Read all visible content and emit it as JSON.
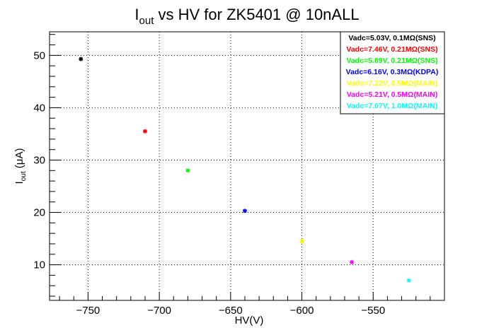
{
  "chart_data": {
    "type": "scatter",
    "title": {
      "main": "I",
      "sub": "out",
      "rest": " vs HV for ZK5401 @ 10nALL"
    },
    "xlabel": "HV(V)",
    "ylabel": {
      "main": "I",
      "sub": "out",
      "rest": " (μA)"
    },
    "xlim": [
      -777,
      -500
    ],
    "ylim": [
      3.2,
      54.5
    ],
    "xticks": [
      -750,
      -700,
      -650,
      -600,
      -550
    ],
    "xtick_labels": [
      "−750",
      "−700",
      "−650",
      "−600",
      "−550"
    ],
    "yticks": [
      10,
      20,
      30,
      40,
      50
    ],
    "ytick_labels": [
      "10",
      "20",
      "30",
      "40",
      "50"
    ],
    "grid": true,
    "legend_position": "top-right",
    "series": [
      {
        "name": "Vadc=5.03V, 0.1MΩ(SNS)",
        "color": "#000000",
        "x": -755,
        "y": 49.3
      },
      {
        "name": "Vadc=7.46V, 0.21MΩ(SNS)",
        "color": "#ff0000",
        "x": -710,
        "y": 35.5
      },
      {
        "name": "Vadc=5.89V, 0.21MΩ(SNS)",
        "color": "#00ff00",
        "x": -680,
        "y": 28.0
      },
      {
        "name": "Vadc=6.16V, 0.3MΩ(KDPA)",
        "color": "#0000ff",
        "x": -640,
        "y": 20.3
      },
      {
        "name": "Vadc=7.22V, 0.5MΩ(MAIN)",
        "color": "#ffff00",
        "x": -600,
        "y": 14.5
      },
      {
        "name": "Vadc=5.21V, 0.5MΩ(MAIN)",
        "color": "#ff00ff",
        "x": -565,
        "y": 10.5
      },
      {
        "name": "Vadc=7.07V, 1.0MΩ(MAIN)",
        "color": "#00ffff",
        "x": -525,
        "y": 7.0
      }
    ]
  }
}
